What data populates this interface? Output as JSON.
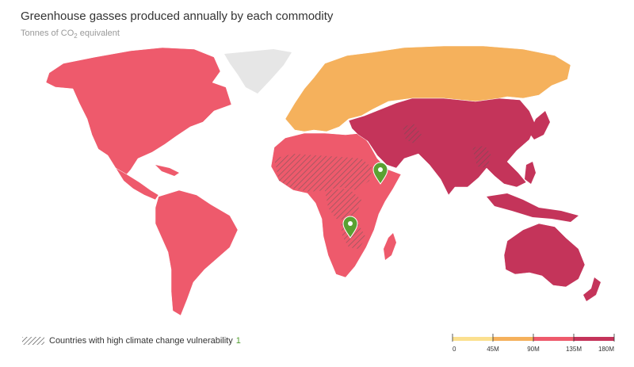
{
  "header": {
    "title": "Greenhouse gasses produced annually by each commodity",
    "subtitle_main": "Tonnes of CO",
    "subtitle_sub": "2",
    "subtitle_rest": " equivalent"
  },
  "legend": {
    "hatch_label": "Countries with high climate change vulnerability",
    "hatch_count": "1"
  },
  "scale": {
    "ticks": [
      "0",
      "45M",
      "90M",
      "135M",
      "180M"
    ],
    "colors": [
      "#fbe08f",
      "#f5b15c",
      "#ee5a6c",
      "#c4345a"
    ]
  },
  "colors": {
    "no_data": "#e6e6e6",
    "americas_africa": "#ee5a6c",
    "europe_russia": "#f5b15c",
    "asia_oceania": "#c4345a",
    "marker": "#5aa132"
  },
  "markers": [
    {
      "name": "marker-east-africa",
      "icon": "map-pin-icon"
    },
    {
      "name": "marker-southern-africa",
      "icon": "map-pin-icon"
    }
  ]
}
